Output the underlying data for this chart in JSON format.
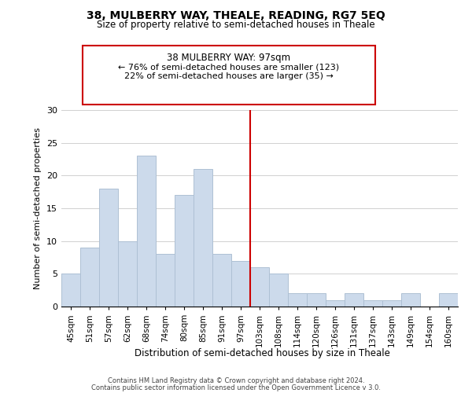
{
  "title": "38, MULBERRY WAY, THEALE, READING, RG7 5EQ",
  "subtitle": "Size of property relative to semi-detached houses in Theale",
  "xlabel": "Distribution of semi-detached houses by size in Theale",
  "ylabel": "Number of semi-detached properties",
  "categories": [
    "45sqm",
    "51sqm",
    "57sqm",
    "62sqm",
    "68sqm",
    "74sqm",
    "80sqm",
    "85sqm",
    "91sqm",
    "97sqm",
    "103sqm",
    "108sqm",
    "114sqm",
    "120sqm",
    "126sqm",
    "131sqm",
    "137sqm",
    "143sqm",
    "149sqm",
    "154sqm",
    "160sqm"
  ],
  "values": [
    5,
    9,
    18,
    10,
    23,
    8,
    17,
    21,
    8,
    7,
    6,
    5,
    2,
    2,
    1,
    2,
    1,
    1,
    2,
    0,
    2
  ],
  "highlight_index": 9,
  "smaller_pct": 76,
  "smaller_count": 123,
  "larger_pct": 22,
  "larger_count": 35,
  "bar_color": "#ccdaeb",
  "bar_edge_color": "#aec0d4",
  "highlight_line_color": "#cc0000",
  "box_edge_color": "#cc0000",
  "ylim": [
    0,
    30
  ],
  "yticks": [
    0,
    5,
    10,
    15,
    20,
    25,
    30
  ],
  "footer1": "Contains HM Land Registry data © Crown copyright and database right 2024.",
  "footer2": "Contains public sector information licensed under the Open Government Licence v 3.0."
}
